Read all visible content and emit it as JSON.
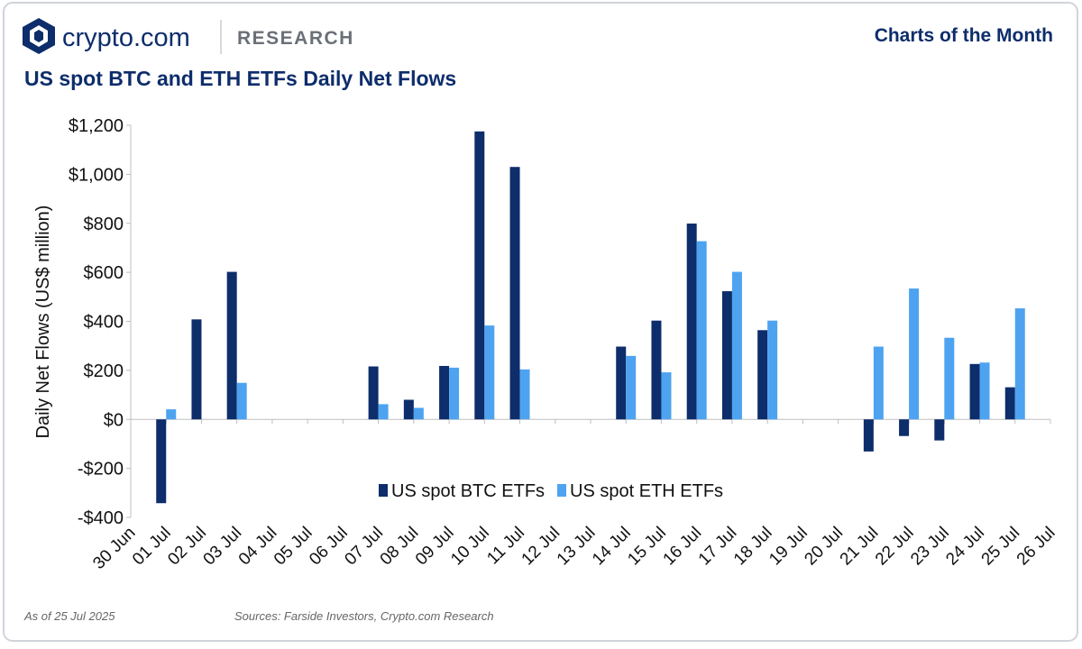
{
  "header": {
    "brand": "crypto.com",
    "section": "RESEARCH",
    "series_title": "Charts of the Month"
  },
  "chart_data": {
    "type": "bar",
    "title": "US spot BTC and ETH ETFs Daily Net Flows",
    "y_label": "Daily Net Flows (US$ million)",
    "categories": [
      "30 Jun",
      "01 Jul",
      "02 Jul",
      "03 Jul",
      "04 Jul",
      "05 Jul",
      "06 Jul",
      "07 Jul",
      "08 Jul",
      "09 Jul",
      "10 Jul",
      "11 Jul",
      "12 Jul",
      "13 Jul",
      "14 Jul",
      "15 Jul",
      "16 Jul",
      "17 Jul",
      "18 Jul",
      "19 Jul",
      "20 Jul",
      "21 Jul",
      "22 Jul",
      "23 Jul",
      "24 Jul",
      "25 Jul",
      "26 Jul"
    ],
    "series": [
      {
        "name": "US spot BTC ETFs",
        "color": "#0d2d6b",
        "values": [
          null,
          -342,
          408,
          602,
          null,
          null,
          null,
          216,
          80,
          218,
          1175,
          1030,
          null,
          null,
          297,
          403,
          799,
          523,
          364,
          null,
          null,
          -131,
          -68,
          -86,
          226,
          131,
          null
        ]
      },
      {
        "name": "US spot ETH ETFs",
        "color": "#4ea3f0",
        "values": [
          null,
          41,
          0,
          149,
          null,
          null,
          null,
          62,
          47,
          211,
          383,
          204,
          null,
          null,
          259,
          192,
          727,
          602,
          403,
          null,
          null,
          297,
          534,
          333,
          232,
          453,
          null
        ]
      }
    ],
    "ylim": [
      -400,
      1200
    ],
    "yticks": [
      {
        "value": -400,
        "label": "-$400"
      },
      {
        "value": -200,
        "label": "-$200"
      },
      {
        "value": 0,
        "label": "$0"
      },
      {
        "value": 200,
        "label": "$200"
      },
      {
        "value": 400,
        "label": "$400"
      },
      {
        "value": 600,
        "label": "$600"
      },
      {
        "value": 800,
        "label": "$800"
      },
      {
        "value": 1000,
        "label": "$1,000"
      },
      {
        "value": 1200,
        "label": "$1,200"
      }
    ],
    "grid": false,
    "legend": "bottom"
  },
  "footer": {
    "as_of": "As of 25 Jul 2025",
    "sources": "Sources: Farside Investors, Crypto.com Research"
  }
}
